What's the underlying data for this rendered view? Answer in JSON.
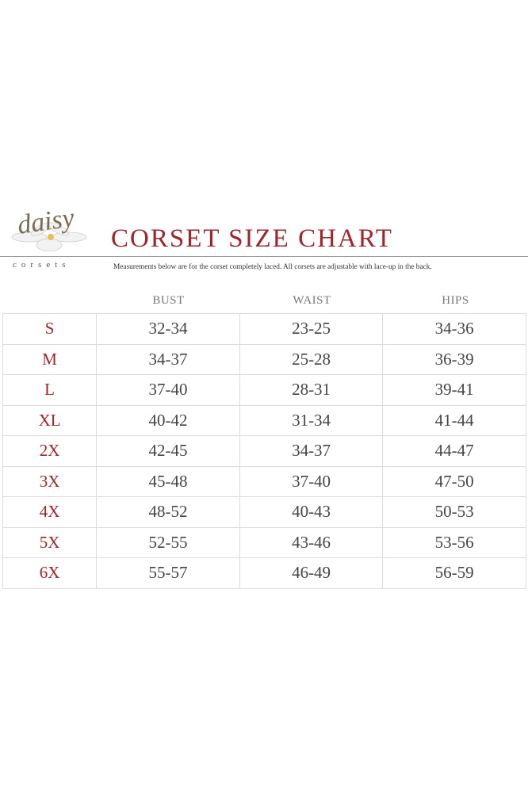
{
  "logo": {
    "script": "daisy",
    "word": "corsets"
  },
  "title": "CORSET SIZE CHART",
  "subtitle": "Measurements below are for the corset completely laced.  All corsets are adjustable with lace-up in the back.",
  "colors": {
    "accent": "#a3232d",
    "text": "#444444",
    "header": "#777777"
  },
  "columns": [
    "BUST",
    "WAIST",
    "HIPS"
  ],
  "rows": [
    {
      "size": "S",
      "bust": "32-34",
      "waist": "23-25",
      "hips": "34-36"
    },
    {
      "size": "M",
      "bust": "34-37",
      "waist": "25-28",
      "hips": "36-39"
    },
    {
      "size": "L",
      "bust": "37-40",
      "waist": "28-31",
      "hips": "39-41"
    },
    {
      "size": "XL",
      "bust": "40-42",
      "waist": "31-34",
      "hips": "41-44"
    },
    {
      "size": "2X",
      "bust": "42-45",
      "waist": "34-37",
      "hips": "44-47"
    },
    {
      "size": "3X",
      "bust": "45-48",
      "waist": "37-40",
      "hips": "47-50"
    },
    {
      "size": "4X",
      "bust": "48-52",
      "waist": "40-43",
      "hips": "50-53"
    },
    {
      "size": "5X",
      "bust": "52-55",
      "waist": "43-46",
      "hips": "53-56"
    },
    {
      "size": "6X",
      "bust": "55-57",
      "waist": "46-49",
      "hips": "56-59"
    }
  ]
}
